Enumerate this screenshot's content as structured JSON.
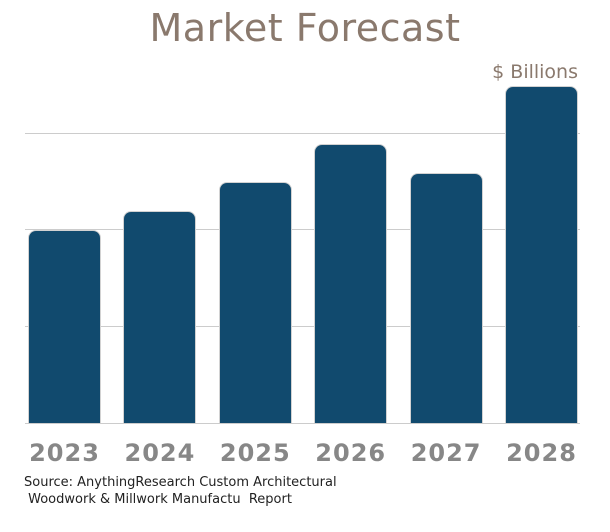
{
  "colors": {
    "background": "#ffffff",
    "bar_color": "#114a6e",
    "bar_border_color": "#d2d2d2",
    "title_color": "#8a796d",
    "axis_label_color": "#878787",
    "gridline_color": "#cccccc",
    "source_text_color": "#222222"
  },
  "source": {
    "line1": "Source: AnythingResearch Custom Architectural",
    "line2": " Woodwork & Millwork Manufactu  Report"
  },
  "chart_data": {
    "type": "bar",
    "title": "Market Forecast",
    "unit_label": "$ Billions",
    "categories": [
      "2023",
      "2024",
      "2025",
      "2026",
      "2027",
      "2028"
    ],
    "values": [
      2.0,
      2.2,
      2.5,
      2.9,
      2.6,
      3.5
    ],
    "value_note": "y-axis has no numeric tick labels; values estimated from unlabeled gridlines at 1, 2, 3 units",
    "gridline_values": [
      1,
      2,
      3
    ],
    "ylim": [
      0,
      3.5
    ],
    "xlabel": "",
    "ylabel": "$ Billions",
    "grid": "horizontal",
    "legend": "none"
  }
}
